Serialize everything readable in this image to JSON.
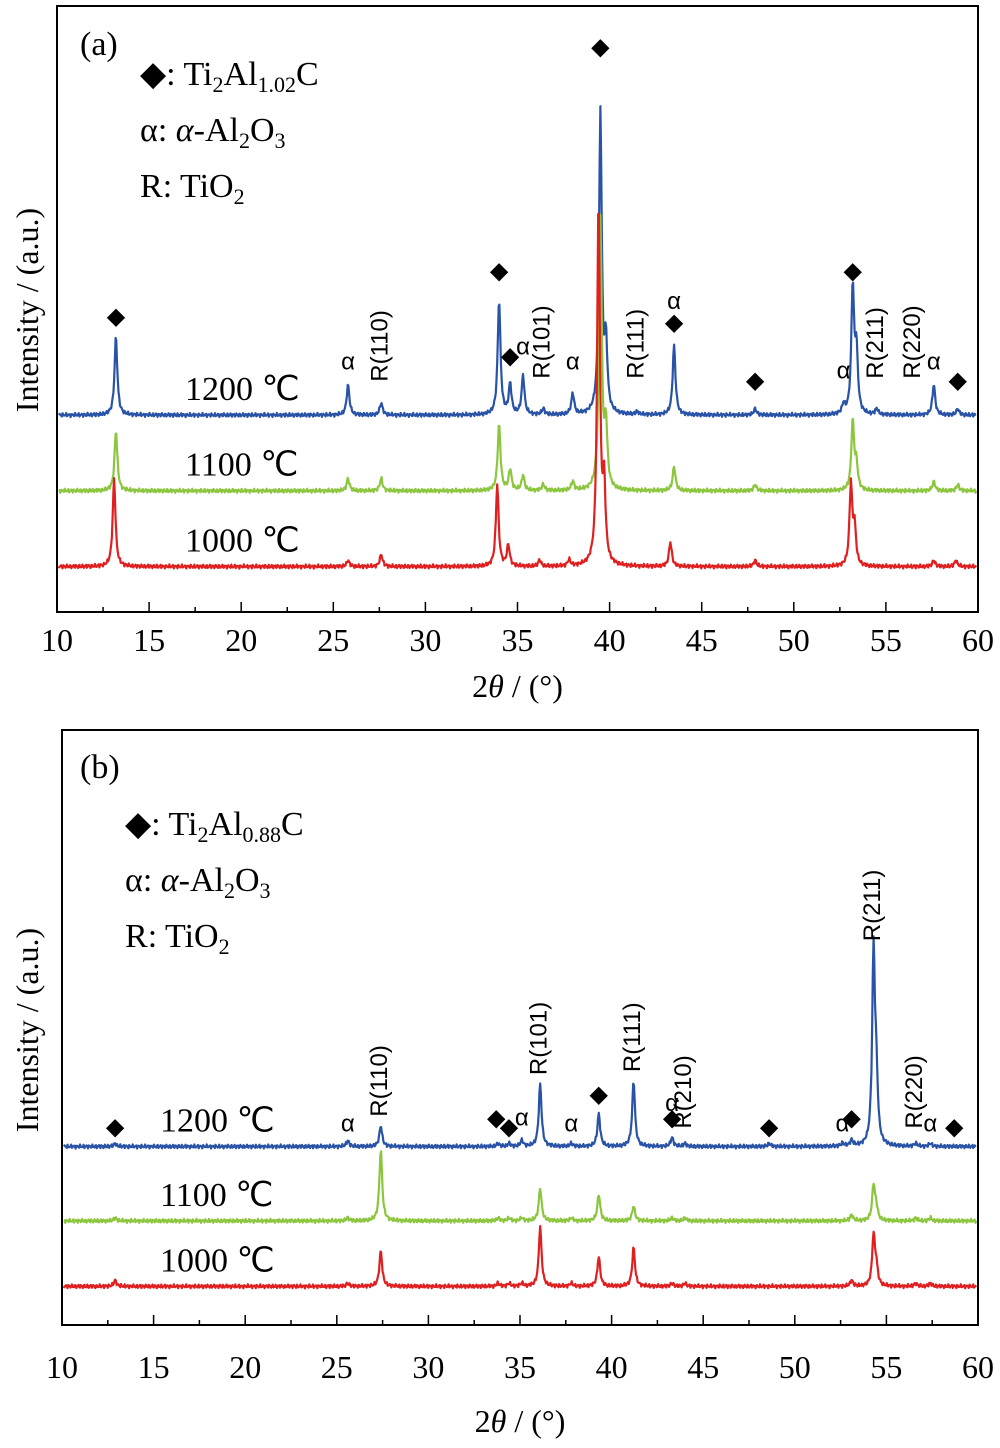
{
  "chart_data": [
    {
      "panel": "(a)",
      "type": "line",
      "xlabel_prefix": "2",
      "xlabel_var": "θ",
      "xlabel_suffix": " / (°)",
      "ylabel": "Intensity / (a.u.)",
      "xlim": [
        10,
        60
      ],
      "xticks": [
        10,
        15,
        20,
        25,
        30,
        35,
        40,
        45,
        50,
        55,
        60
      ],
      "legend": [
        {
          "sym": "◆",
          "parts": [
            [
              "",
              ": Ti"
            ],
            [
              "sub",
              "2"
            ],
            [
              "",
              "Al"
            ],
            [
              "sub",
              "1.02"
            ],
            [
              "",
              "C"
            ]
          ]
        },
        {
          "sym": "α",
          "parts": [
            [
              "",
              ": "
            ],
            [
              "it",
              "α"
            ],
            [
              "",
              "-Al"
            ],
            [
              "sub",
              "2"
            ],
            [
              "",
              "O"
            ],
            [
              "sub",
              "3"
            ]
          ]
        },
        {
          "sym": "R",
          "parts": [
            [
              "",
              ": TiO"
            ],
            [
              "sub",
              "2"
            ]
          ]
        }
      ],
      "series": [
        {
          "name": "1200 ℃",
          "color": "#2953a6",
          "level": 0.65,
          "peaks": [
            [
              13.2,
              0.26
            ],
            [
              25.8,
              0.1
            ],
            [
              27.6,
              0.04
            ],
            [
              34.0,
              0.38
            ],
            [
              34.6,
              0.1
            ],
            [
              35.3,
              0.13
            ],
            [
              36.4,
              0.02
            ],
            [
              38.0,
              0.07
            ],
            [
              39.5,
              1.0
            ],
            [
              39.8,
              0.22
            ],
            [
              41.5,
              0.01
            ],
            [
              43.5,
              0.23
            ],
            [
              47.9,
              0.02
            ],
            [
              52.7,
              0.03
            ],
            [
              53.2,
              0.42
            ],
            [
              53.4,
              0.2
            ],
            [
              54.5,
              0.02
            ],
            [
              57.6,
              0.1
            ],
            [
              58.9,
              0.02
            ]
          ]
        },
        {
          "name": "1100 ℃",
          "color": "#8cc63f",
          "level": 0.4,
          "peaks": [
            [
              13.2,
              0.2
            ],
            [
              25.8,
              0.04
            ],
            [
              27.6,
              0.04
            ],
            [
              34.0,
              0.22
            ],
            [
              34.6,
              0.07
            ],
            [
              35.3,
              0.05
            ],
            [
              36.4,
              0.02
            ],
            [
              38.0,
              0.03
            ],
            [
              39.5,
              0.9
            ],
            [
              39.8,
              0.2
            ],
            [
              43.5,
              0.08
            ],
            [
              47.9,
              0.02
            ],
            [
              53.2,
              0.23
            ],
            [
              53.4,
              0.08
            ],
            [
              57.6,
              0.03
            ],
            [
              58.9,
              0.02
            ]
          ]
        },
        {
          "name": "1000 ℃",
          "color": "#e02020",
          "level": 0.15,
          "peaks": [
            [
              13.1,
              0.29
            ],
            [
              25.8,
              0.02
            ],
            [
              27.6,
              0.04
            ],
            [
              33.9,
              0.27
            ],
            [
              34.5,
              0.07
            ],
            [
              36.2,
              0.02
            ],
            [
              37.8,
              0.02
            ],
            [
              39.4,
              1.2
            ],
            [
              39.7,
              0.25
            ],
            [
              43.3,
              0.08
            ],
            [
              47.9,
              0.02
            ],
            [
              53.1,
              0.27
            ],
            [
              53.3,
              0.12
            ],
            [
              57.6,
              0.02
            ],
            [
              58.8,
              0.02
            ]
          ]
        }
      ],
      "annotations": [
        {
          "x": 13.2,
          "y": 0.95,
          "label": "◆"
        },
        {
          "x": 25.8,
          "y": 0.8,
          "label": "α"
        },
        {
          "x": 27.6,
          "y": 0.76,
          "label": "R(110)",
          "rotate": true
        },
        {
          "x": 34.0,
          "y": 1.1,
          "label": "◆"
        },
        {
          "x": 34.6,
          "y": 0.82,
          "label": "◆"
        },
        {
          "x": 35.3,
          "y": 0.85,
          "label": "α"
        },
        {
          "x": 36.4,
          "y": 0.77,
          "label": "R(101)",
          "rotate": true
        },
        {
          "x": 38.0,
          "y": 0.8,
          "label": "α"
        },
        {
          "x": 39.5,
          "y": 1.84,
          "label": "◆"
        },
        {
          "x": 41.5,
          "y": 0.77,
          "label": "R(111)",
          "rotate": true
        },
        {
          "x": 43.5,
          "y": 1.0,
          "label": "α"
        },
        {
          "x": 43.5,
          "y": 0.93,
          "label": "◆"
        },
        {
          "x": 47.9,
          "y": 0.74,
          "label": "◆"
        },
        {
          "x": 52.7,
          "y": 0.77,
          "label": "α"
        },
        {
          "x": 53.2,
          "y": 1.1,
          "label": "◆"
        },
        {
          "x": 54.5,
          "y": 0.77,
          "label": "R(211)",
          "rotate": true
        },
        {
          "x": 56.5,
          "y": 0.77,
          "label": "R(220)",
          "rotate": true
        },
        {
          "x": 57.6,
          "y": 0.8,
          "label": "α"
        },
        {
          "x": 58.9,
          "y": 0.74,
          "label": "◆"
        }
      ]
    },
    {
      "panel": "(b)",
      "type": "line",
      "xlabel_prefix": "2",
      "xlabel_var": "θ",
      "xlabel_suffix": " / (°)",
      "ylabel": "Intensity / (a.u.)",
      "xlim": [
        10,
        60
      ],
      "xticks": [
        10,
        15,
        20,
        25,
        30,
        35,
        40,
        45,
        50,
        55,
        60
      ],
      "legend": [
        {
          "sym": "◆",
          "parts": [
            [
              "",
              ": Ti"
            ],
            [
              "sub",
              "2"
            ],
            [
              "",
              "Al"
            ],
            [
              "sub",
              "0.88"
            ],
            [
              "",
              "C"
            ]
          ]
        },
        {
          "sym": "α",
          "parts": [
            [
              "",
              ": "
            ],
            [
              "it",
              "α"
            ],
            [
              "",
              "-Al"
            ],
            [
              "sub",
              "2"
            ],
            [
              "",
              "O"
            ],
            [
              "sub",
              "3"
            ]
          ]
        },
        {
          "sym": "R",
          "parts": [
            [
              "",
              ": TiO"
            ],
            [
              "sub",
              "2"
            ]
          ]
        }
      ],
      "series": [
        {
          "name": "1200 ℃",
          "color": "#2953a6",
          "level": 0.6,
          "peaks": [
            [
              12.9,
              0.01
            ],
            [
              25.6,
              0.02
            ],
            [
              27.4,
              0.07
            ],
            [
              33.8,
              0.01
            ],
            [
              34.4,
              0.01
            ],
            [
              35.1,
              0.02
            ],
            [
              36.1,
              0.21
            ],
            [
              37.8,
              0.01
            ],
            [
              39.3,
              0.11
            ],
            [
              41.2,
              0.22
            ],
            [
              43.3,
              0.03
            ],
            [
              44.0,
              0.01
            ],
            [
              48.6,
              0.01
            ],
            [
              52.6,
              0.01
            ],
            [
              53.1,
              0.02
            ],
            [
              54.3,
              0.65
            ],
            [
              54.45,
              0.2
            ],
            [
              56.6,
              0.01
            ],
            [
              57.4,
              0.01
            ]
          ]
        },
        {
          "name": "1100 ℃",
          "color": "#8cc63f",
          "level": 0.35,
          "peaks": [
            [
              12.9,
              0.01
            ],
            [
              25.6,
              0.01
            ],
            [
              27.4,
              0.24
            ],
            [
              33.8,
              0.01
            ],
            [
              34.4,
              0.01
            ],
            [
              35.1,
              0.01
            ],
            [
              36.1,
              0.11
            ],
            [
              37.8,
              0.01
            ],
            [
              39.3,
              0.09
            ],
            [
              41.2,
              0.05
            ],
            [
              43.3,
              0.01
            ],
            [
              44.0,
              0.01
            ],
            [
              53.1,
              0.02
            ],
            [
              54.3,
              0.12
            ],
            [
              54.45,
              0.04
            ],
            [
              56.6,
              0.01
            ],
            [
              57.4,
              0.01
            ]
          ]
        },
        {
          "name": "1000 ℃",
          "color": "#e02020",
          "level": 0.13,
          "peaks": [
            [
              12.9,
              0.02
            ],
            [
              25.6,
              0.01
            ],
            [
              27.4,
              0.12
            ],
            [
              33.8,
              0.01
            ],
            [
              34.4,
              0.01
            ],
            [
              35.1,
              0.01
            ],
            [
              36.1,
              0.2
            ],
            [
              37.8,
              0.01
            ],
            [
              39.3,
              0.1
            ],
            [
              41.2,
              0.13
            ],
            [
              43.3,
              0.01
            ],
            [
              44.0,
              0.01
            ],
            [
              53.1,
              0.02
            ],
            [
              54.3,
              0.17
            ],
            [
              54.45,
              0.06
            ],
            [
              56.6,
              0.01
            ],
            [
              57.4,
              0.01
            ]
          ]
        }
      ],
      "annotations": [
        {
          "x": 12.9,
          "y": 0.64,
          "label": "◆"
        },
        {
          "x": 25.6,
          "y": 0.65,
          "label": "α"
        },
        {
          "x": 27.4,
          "y": 0.7,
          "label": "R(110)",
          "rotate": true
        },
        {
          "x": 33.7,
          "y": 0.67,
          "label": "◆"
        },
        {
          "x": 34.4,
          "y": 0.64,
          "label": "◆"
        },
        {
          "x": 35.1,
          "y": 0.67,
          "label": "α"
        },
        {
          "x": 36.1,
          "y": 0.84,
          "label": "R(101)",
          "rotate": true
        },
        {
          "x": 37.8,
          "y": 0.65,
          "label": "α"
        },
        {
          "x": 39.3,
          "y": 0.75,
          "label": "◆"
        },
        {
          "x": 41.2,
          "y": 0.85,
          "label": "R(111)",
          "rotate": true
        },
        {
          "x": 43.3,
          "y": 0.72,
          "label": "α"
        },
        {
          "x": 43.3,
          "y": 0.67,
          "label": "◆"
        },
        {
          "x": 44.0,
          "y": 0.66,
          "label": "R(210)",
          "rotate": true
        },
        {
          "x": 48.6,
          "y": 0.64,
          "label": "◆"
        },
        {
          "x": 52.6,
          "y": 0.65,
          "label": "α"
        },
        {
          "x": 53.1,
          "y": 0.67,
          "label": "◆"
        },
        {
          "x": 54.3,
          "y": 1.29,
          "label": "R(211)",
          "rotate": true
        },
        {
          "x": 56.6,
          "y": 0.66,
          "label": "R(220)",
          "rotate": true
        },
        {
          "x": 57.4,
          "y": 0.65,
          "label": "α"
        },
        {
          "x": 58.7,
          "y": 0.64,
          "label": "◆"
        }
      ]
    }
  ]
}
